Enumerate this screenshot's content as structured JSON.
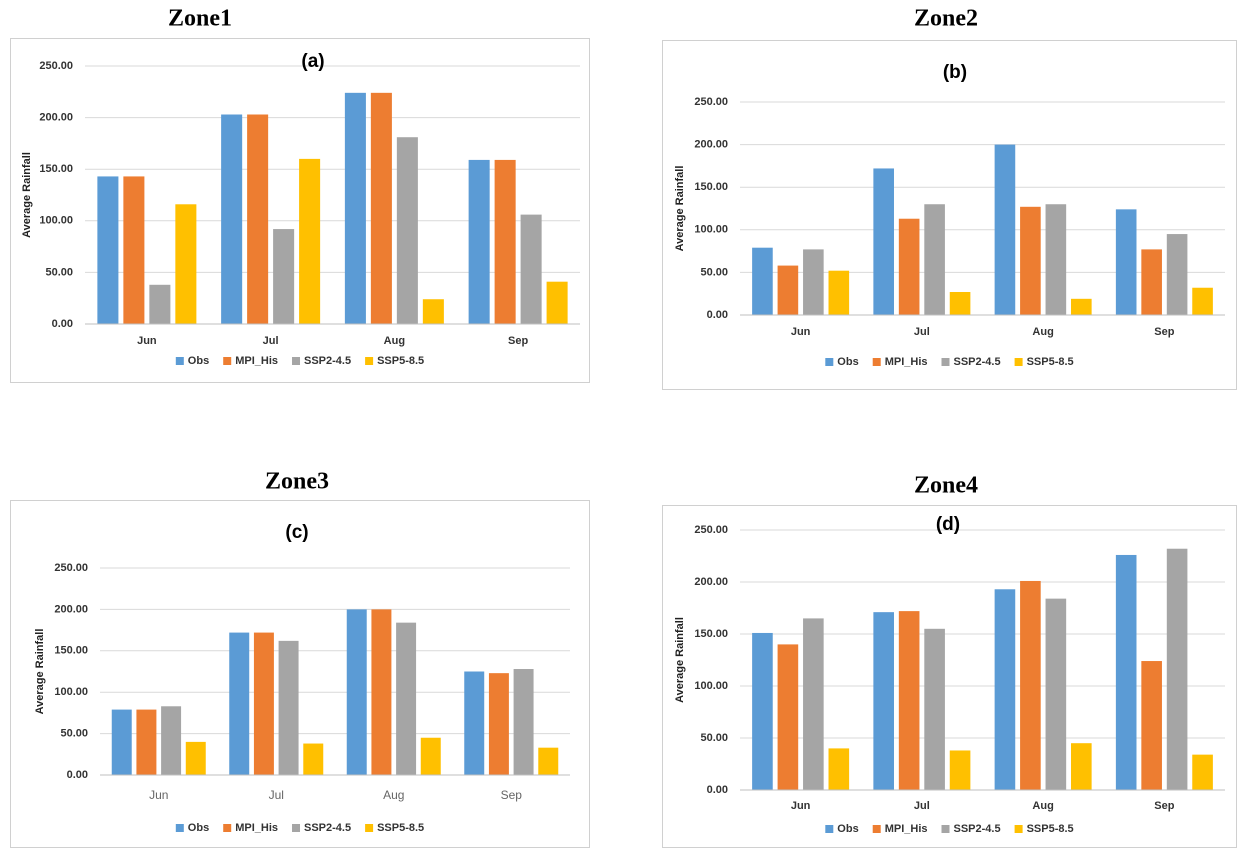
{
  "chart_data": [
    {
      "type": "bar",
      "title": "Zone1",
      "subtitle": "(a)",
      "y_label": "Average Rainfall",
      "categories": [
        "Jun",
        "Jul",
        "Aug",
        "Sep"
      ],
      "series": [
        {
          "name": "Obs",
          "color": "#5b9bd5",
          "values": [
            143,
            203,
            224,
            159
          ]
        },
        {
          "name": "MPI_His",
          "color": "#ed7d31",
          "values": [
            143,
            203,
            224,
            159
          ]
        },
        {
          "name": "SSP2-4.5",
          "color": "#a5a5a5",
          "values": [
            38,
            92,
            181,
            106
          ]
        },
        {
          "name": "SSP5-8.5",
          "color": "#ffc000",
          "values": [
            116,
            160,
            24,
            41
          ]
        }
      ],
      "ylim": [
        0,
        250
      ],
      "yticks": [
        {
          "value": 0,
          "label": "0.00"
        },
        {
          "value": 50,
          "label": "50.00"
        },
        {
          "value": 100,
          "label": "100.00"
        },
        {
          "value": 150,
          "label": "150.00"
        },
        {
          "value": 200,
          "label": "200.00"
        },
        {
          "value": 250,
          "label": "250.00"
        }
      ],
      "grid": true,
      "legend": "bottom"
    },
    {
      "type": "bar",
      "title": "Zone2",
      "subtitle": "(b)",
      "y_label": "Average Rainfall",
      "categories": [
        "Jun",
        "Jul",
        "Aug",
        "Sep"
      ],
      "series": [
        {
          "name": "Obs",
          "color": "#5b9bd5",
          "values": [
            79,
            172,
            200,
            124
          ]
        },
        {
          "name": "MPI_His",
          "color": "#ed7d31",
          "values": [
            58,
            113,
            127,
            77
          ]
        },
        {
          "name": "SSP2-4.5",
          "color": "#a5a5a5",
          "values": [
            77,
            130,
            130,
            95
          ]
        },
        {
          "name": "SSP5-8.5",
          "color": "#ffc000",
          "values": [
            52,
            27,
            19,
            32
          ]
        }
      ],
      "ylim": [
        0,
        250
      ],
      "yticks": [
        {
          "value": 0,
          "label": "0.00"
        },
        {
          "value": 50,
          "label": "50.00"
        },
        {
          "value": 100,
          "label": "100.00"
        },
        {
          "value": 150,
          "label": "150.00"
        },
        {
          "value": 200,
          "label": "200.00"
        },
        {
          "value": 250,
          "label": "250.00"
        }
      ],
      "grid": true,
      "legend": "bottom"
    },
    {
      "type": "bar",
      "title": "Zone3",
      "subtitle": "(c)",
      "y_label": "Average Rainfall",
      "categories": [
        "Jun",
        "Jul",
        "Aug",
        "Sep"
      ],
      "series": [
        {
          "name": "Obs",
          "color": "#5b9bd5",
          "values": [
            79,
            172,
            200,
            125
          ]
        },
        {
          "name": "MPI_His",
          "color": "#ed7d31",
          "values": [
            79,
            172,
            200,
            123
          ]
        },
        {
          "name": "SSP2-4.5",
          "color": "#a5a5a5",
          "values": [
            83,
            162,
            184,
            128
          ]
        },
        {
          "name": "SSP5-8.5",
          "color": "#ffc000",
          "values": [
            40,
            38,
            45,
            33
          ]
        }
      ],
      "ylim": [
        0,
        250
      ],
      "yticks": [
        {
          "value": 0,
          "label": "0.00"
        },
        {
          "value": 50,
          "label": "50.00"
        },
        {
          "value": 100,
          "label": "100.00"
        },
        {
          "value": 150,
          "label": "150.00"
        },
        {
          "value": 200,
          "label": "200.00"
        },
        {
          "value": 250,
          "label": "250.00"
        }
      ],
      "grid": true,
      "legend": "bottom"
    },
    {
      "type": "bar",
      "title": "Zone4",
      "subtitle": "(d)",
      "y_label": "Average Rainfall",
      "categories": [
        "Jun",
        "Jul",
        "Aug",
        "Sep"
      ],
      "series": [
        {
          "name": "Obs",
          "color": "#5b9bd5",
          "values": [
            151,
            171,
            193,
            226
          ]
        },
        {
          "name": "MPI_His",
          "color": "#ed7d31",
          "values": [
            140,
            172,
            201,
            124
          ]
        },
        {
          "name": "SSP2-4.5",
          "color": "#a5a5a5",
          "values": [
            165,
            155,
            184,
            232
          ]
        },
        {
          "name": "SSP5-8.5",
          "color": "#ffc000",
          "values": [
            40,
            38,
            45,
            34
          ]
        }
      ],
      "ylim": [
        0,
        250
      ],
      "yticks": [
        {
          "value": 0,
          "label": "0.00"
        },
        {
          "value": 50,
          "label": "50.00"
        },
        {
          "value": 100,
          "label": "100.00"
        },
        {
          "value": 150,
          "label": "150.00"
        },
        {
          "value": 200,
          "label": "200.00"
        },
        {
          "value": 250,
          "label": "250.00"
        }
      ],
      "grid": true,
      "legend": "bottom"
    }
  ]
}
